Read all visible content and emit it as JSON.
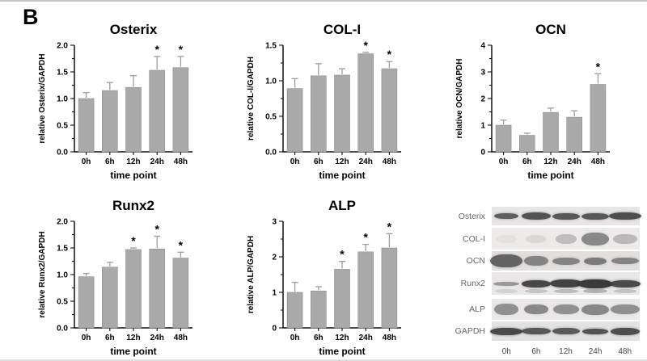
{
  "panel_label": "B",
  "colors": {
    "bar_fill": "#a9a9a9",
    "bar_edge": "#8f8f8f",
    "error_bar": "#9e9e9e",
    "axis": "#111111",
    "band": "#3a3a3a"
  },
  "chart_data": [
    {
      "type": "bar",
      "title": "Osterix",
      "ylabel": "relative Osterix/GAPDH",
      "xlabel": "time point",
      "categories": [
        "0h",
        "6h",
        "12h",
        "24h",
        "48h"
      ],
      "values": [
        1.0,
        1.15,
        1.21,
        1.53,
        1.58
      ],
      "errors": [
        0.11,
        0.15,
        0.22,
        0.26,
        0.21
      ],
      "significance": [
        "",
        "",
        "",
        "*",
        "*"
      ],
      "ylim": [
        0,
        2
      ],
      "yticks": [
        0,
        0.5,
        1,
        1.5,
        2
      ],
      "ytick_labels": [
        "0.0",
        "0.5",
        "1.0",
        "1.5",
        "2.0"
      ]
    },
    {
      "type": "bar",
      "title": "COL-I",
      "ylabel": "relative COL-I/GAPDH",
      "xlabel": "time point",
      "categories": [
        "0h",
        "6h",
        "12h",
        "24h",
        "48h"
      ],
      "values": [
        0.89,
        1.07,
        1.08,
        1.38,
        1.17
      ],
      "errors": [
        0.14,
        0.17,
        0.09,
        0.02,
        0.1
      ],
      "significance": [
        "",
        "",
        "",
        "*",
        "*"
      ],
      "ylim": [
        0,
        1.5
      ],
      "yticks": [
        0,
        0.5,
        1,
        1.5
      ],
      "ytick_labels": [
        "0.0",
        "0.5",
        "1.0",
        "1.5"
      ]
    },
    {
      "type": "bar",
      "title": "OCN",
      "ylabel": "relative OCN/GAPDH",
      "xlabel": "time point",
      "categories": [
        "0h",
        "6h",
        "12h",
        "24h",
        "48h"
      ],
      "values": [
        1.0,
        0.62,
        1.48,
        1.3,
        2.53
      ],
      "errors": [
        0.19,
        0.08,
        0.16,
        0.24,
        0.4
      ],
      "significance": [
        "",
        "",
        "",
        "",
        "*"
      ],
      "ylim": [
        0,
        4
      ],
      "yticks": [
        0,
        1,
        2,
        3,
        4
      ],
      "ytick_labels": [
        "0",
        "1",
        "2",
        "3",
        "4"
      ]
    },
    {
      "type": "bar",
      "title": "Runx2",
      "ylabel": "relative Runx2/GAPDH",
      "xlabel": "time point",
      "categories": [
        "0h",
        "6h",
        "12h",
        "24h",
        "48h"
      ],
      "values": [
        0.96,
        1.14,
        1.47,
        1.48,
        1.31
      ],
      "errors": [
        0.06,
        0.09,
        0.03,
        0.24,
        0.11
      ],
      "significance": [
        "",
        "",
        "*",
        "*",
        "*"
      ],
      "ylim": [
        0,
        2
      ],
      "yticks": [
        0,
        0.5,
        1,
        1.5,
        2
      ],
      "ytick_labels": [
        "0.0",
        "0.5",
        "1.0",
        "1.5",
        "2.0"
      ]
    },
    {
      "type": "bar",
      "title": "ALP",
      "ylabel": "relative ALP/GAPDH",
      "xlabel": "time point",
      "categories": [
        "0h",
        "6h",
        "12h",
        "24h",
        "48h"
      ],
      "values": [
        1.0,
        1.04,
        1.65,
        2.14,
        2.25
      ],
      "errors": [
        0.28,
        0.12,
        0.22,
        0.21,
        0.4
      ],
      "significance": [
        "",
        "",
        "*",
        "*",
        "*"
      ],
      "ylim": [
        0,
        3
      ],
      "yticks": [
        0,
        1,
        2,
        3
      ],
      "ytick_labels": [
        "0",
        "1",
        "2",
        "3"
      ]
    }
  ],
  "western_blot": {
    "lane_labels": [
      "0h",
      "6h",
      "12h",
      "24h",
      "48h"
    ],
    "rows": [
      {
        "label": "Osterix",
        "bg": "#e7e5e5",
        "height": 23,
        "bands": [
          [
            0.78,
            30,
            7
          ],
          [
            0.85,
            36,
            9
          ],
          [
            0.82,
            34,
            8
          ],
          [
            0.82,
            34,
            8
          ],
          [
            0.88,
            40,
            9
          ]
        ]
      },
      {
        "label": "COL-I",
        "bg": "#edeaea",
        "height": 27,
        "bands": [
          [
            0.05,
            26,
            10
          ],
          [
            0.1,
            26,
            10
          ],
          [
            0.25,
            26,
            12
          ],
          [
            0.55,
            34,
            16
          ],
          [
            0.28,
            30,
            12
          ]
        ]
      },
      {
        "label": "OCN",
        "bg": "#e2dfdf",
        "height": 24,
        "bands": [
          [
            0.75,
            40,
            16
          ],
          [
            0.55,
            30,
            12
          ],
          [
            0.55,
            34,
            9
          ],
          [
            0.6,
            28,
            9
          ],
          [
            0.55,
            34,
            8
          ]
        ]
      },
      {
        "label": "Runx2",
        "bg": "#e9e7e7",
        "height": 28,
        "bands": [
          [
            0.45,
            32,
            5
          ],
          [
            0.92,
            36,
            9
          ],
          [
            0.95,
            40,
            10
          ],
          [
            1.0,
            42,
            11
          ],
          [
            0.9,
            38,
            9
          ]
        ],
        "sub_bands": [
          [
            0.12,
            28,
            5
          ],
          [
            0.2,
            28,
            5
          ],
          [
            0.25,
            30,
            5
          ],
          [
            0.3,
            30,
            5
          ],
          [
            0.22,
            28,
            5
          ]
        ]
      },
      {
        "label": "ALP",
        "bg": "#eae8e8",
        "height": 26,
        "bands": [
          [
            0.5,
            30,
            14
          ],
          [
            0.55,
            30,
            12
          ],
          [
            0.5,
            32,
            12
          ],
          [
            0.55,
            34,
            13
          ],
          [
            0.5,
            36,
            12
          ]
        ]
      },
      {
        "label": "GAPDH",
        "bg": "#e3e1e1",
        "height": 24,
        "bands": [
          [
            0.9,
            40,
            9
          ],
          [
            0.82,
            36,
            8
          ],
          [
            0.8,
            34,
            8
          ],
          [
            0.85,
            32,
            7
          ],
          [
            0.88,
            36,
            9
          ]
        ]
      }
    ]
  }
}
